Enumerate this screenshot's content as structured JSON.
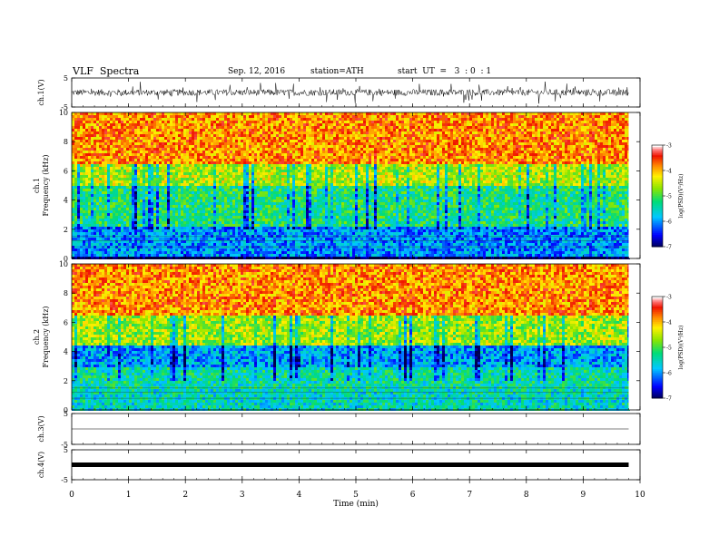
{
  "header": {
    "title": "VLF  Spectra",
    "date": "Sep. 12, 2016",
    "station": "station=ATH",
    "start": "start  UT  =   3  : 0  : 1"
  },
  "chart_data": [
    {
      "type": "line",
      "panel": "ch1-waveform",
      "ylabel": "ch.1(V)",
      "ylim": [
        -5,
        5
      ],
      "yticks": [
        5,
        -5
      ],
      "description_series_mean": 0,
      "series": [
        {
          "values_envelope": [
            -1.2,
            1.2
          ]
        }
      ]
    },
    {
      "type": "heatmap",
      "panel": "ch1-spectrogram",
      "ylabel": "ch.1\nFrequency (kHz)",
      "ylim": [
        0,
        10
      ],
      "yticks": [
        0,
        2,
        4,
        6,
        8,
        10
      ],
      "colorbar": {
        "label": "log(PSD)(V²/Hz)",
        "ticks": [
          -3,
          -4,
          -5,
          -6,
          -7
        ],
        "range": [
          -7,
          -3
        ]
      },
      "bands": [
        {
          "from": 0,
          "to": 0.3,
          "level": -7
        },
        {
          "from": 0.3,
          "to": 2.2,
          "level": -6
        },
        {
          "from": 2.2,
          "to": 5.0,
          "level": -5.2
        },
        {
          "from": 5.0,
          "to": 6.5,
          "level": -4.5
        },
        {
          "from": 6.5,
          "to": 10,
          "level": -3.8
        }
      ]
    },
    {
      "type": "heatmap",
      "panel": "ch2-spectrogram",
      "ylabel": "ch.2\nFrequency (kHz)",
      "ylim": [
        0,
        10
      ],
      "yticks": [
        0,
        2,
        4,
        6,
        8,
        10
      ],
      "colorbar": {
        "label": "log(PSD)(V²/Hz)",
        "ticks": [
          -3,
          -4,
          -5,
          -6,
          -7
        ],
        "range": [
          -7,
          -3
        ]
      },
      "bands": [
        {
          "from": 0,
          "to": 1.5,
          "level": -5.5
        },
        {
          "from": 1.5,
          "to": 3.0,
          "level": -5.4
        },
        {
          "from": 3.0,
          "to": 4.5,
          "level": -5.9
        },
        {
          "from": 4.5,
          "to": 6.5,
          "level": -4.6
        },
        {
          "from": 6.5,
          "to": 10,
          "level": -3.8
        }
      ]
    },
    {
      "type": "line",
      "panel": "ch3-waveform",
      "ylabel": "ch.3(V)",
      "ylim": [
        -5,
        5
      ],
      "yticks": [
        5,
        -5
      ],
      "series": [
        {
          "constant": 0
        }
      ]
    },
    {
      "type": "line",
      "panel": "ch4-waveform",
      "ylabel": "ch.4(V)",
      "ylim": [
        -5,
        5
      ],
      "yticks": [
        5,
        -5
      ],
      "series": [
        {
          "constant": 0
        }
      ]
    }
  ],
  "xaxis": {
    "label": "Time  (min)",
    "ticks": [
      0,
      1,
      2,
      3,
      4,
      5,
      6,
      7,
      8,
      9,
      10
    ],
    "xlim": [
      0,
      10
    ],
    "data_end": 9.8
  }
}
